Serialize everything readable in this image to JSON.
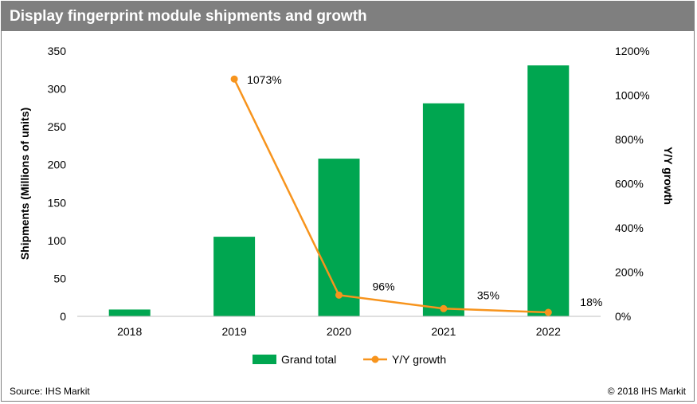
{
  "title": "Display fingerprint module shipments and growth",
  "source": "Source: IHS Markit",
  "copyright": "© 2018 IHS Markit",
  "colors": {
    "bar": "#00a650",
    "line": "#f7941d",
    "header": "#7f7f7f"
  },
  "chart_data": {
    "type": "bar",
    "categories": [
      "2018",
      "2019",
      "2020",
      "2021",
      "2022"
    ],
    "series": [
      {
        "name": "Grand total",
        "type": "bar",
        "axis": "left",
        "values": [
          9,
          105,
          208,
          281,
          331
        ]
      },
      {
        "name": "Y/Y growth",
        "type": "line",
        "axis": "right",
        "values": [
          null,
          1073,
          96,
          35,
          18
        ],
        "labels": [
          "",
          "1073%",
          "96%",
          "35%",
          "18%"
        ]
      }
    ],
    "ylabel": "Shipments (Millions of units)",
    "ylim": [
      0,
      350
    ],
    "yticks": [
      "0",
      "50",
      "100",
      "150",
      "200",
      "250",
      "300",
      "350"
    ],
    "y2label": "Y/Y growth",
    "y2lim": [
      0,
      1200
    ],
    "y2ticks": [
      "0%",
      "200%",
      "400%",
      "600%",
      "800%",
      "1000%",
      "1200%"
    ],
    "grid": false,
    "legend": "bottom"
  }
}
